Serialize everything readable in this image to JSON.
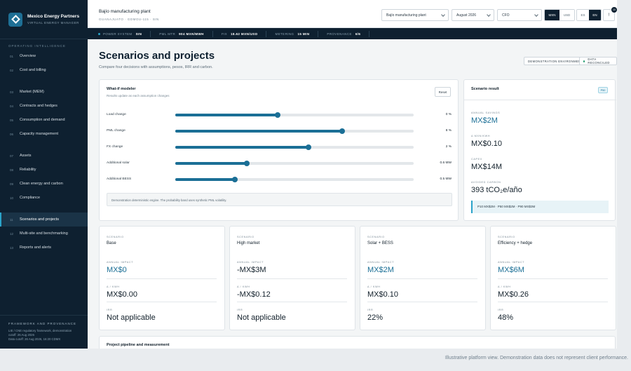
{
  "brand": {
    "name": "Mexico Energy Partners",
    "subtitle": "VIRTUAL ENERGY MANAGER"
  },
  "sidebar": {
    "sections": [
      {
        "title": "OPERATING INTELLIGENCE",
        "items": [
          {
            "num": "01",
            "label": "Overview"
          },
          {
            "num": "02",
            "label": "Cost and billing"
          }
        ]
      },
      {
        "title": "",
        "items": [
          {
            "num": "03",
            "label": "Market (MEM)"
          },
          {
            "num": "04",
            "label": "Contracts and hedges"
          },
          {
            "num": "05",
            "label": "Consumption and demand"
          },
          {
            "num": "06",
            "label": "Capacity management"
          }
        ]
      },
      {
        "title": "",
        "items": [
          {
            "num": "07",
            "label": "Assets"
          },
          {
            "num": "08",
            "label": "Reliability"
          },
          {
            "num": "09",
            "label": "Clean energy and carbon"
          },
          {
            "num": "10",
            "label": "Compliance"
          }
        ]
      },
      {
        "title": "",
        "items": [
          {
            "num": "11",
            "label": "Scenarios and projects",
            "active": true
          },
          {
            "num": "12",
            "label": "Multi-site and benchmarking"
          },
          {
            "num": "13",
            "label": "Reports and alerts"
          }
        ]
      }
    ],
    "footer": {
      "title": "FRAMEWORK AND PROVENANCE",
      "lines": [
        "LIE / CNE regulatory framework, demonstration",
        "cutoff: 26 Aug 2026",
        "Data cutoff: 26 Aug 2026, 16:20 CDMX"
      ]
    }
  },
  "topbar": {
    "site_name": "Bajío manufacturing plant",
    "site_location": "GUANAJUATO · GDMOU-115 · SIN",
    "site_select": "Bajío manufacturing plant",
    "period_select": "August 2026",
    "role_select": "CFO",
    "currency": [
      "MXN",
      "USD"
    ],
    "language": [
      "ES",
      "EN"
    ],
    "notifications_icon": "!",
    "notifications_count": "10"
  },
  "statusbar": [
    {
      "label": "POWER SYSTEM",
      "value": "SIN",
      "dot": true
    },
    {
      "label": "PML MTR",
      "value": "904 MXN/MWH"
    },
    {
      "label": "FIX",
      "value": "18.62 MXN/USD"
    },
    {
      "label": "METERING",
      "value": "15 MIN"
    },
    {
      "label": "PROVENANCE",
      "value": "6/6"
    }
  ],
  "page": {
    "title": "Scenarios and projects",
    "subtitle": "Compare four decisions with assumptions, pesos, IRR and carbon.",
    "env_pill": "DEMONSTRATION ENVIRONMENT",
    "reconciled_pill": "DATA RECONCILED"
  },
  "modeler": {
    "title": "What-if modeler",
    "subtitle": "Results update as each assumption changes",
    "reset": "Reset",
    "sliders": [
      {
        "label": "Load change",
        "value": "0 %",
        "level": 0.43
      },
      {
        "label": "PML change",
        "value": "8 %",
        "level": 0.7
      },
      {
        "label": "FX change",
        "value": "2 %",
        "level": 0.56
      },
      {
        "label": "Additional solar",
        "value": "0.6 MW",
        "level": 0.3
      },
      {
        "label": "Additional BESS",
        "value": "0.5 MW",
        "level": 0.25
      }
    ],
    "note": "Demonstration deterministic engine. The probability band uses synthetic PML volatility."
  },
  "result": {
    "title": "Scenario result",
    "badge": "P50",
    "metrics": [
      {
        "label": "ANNUAL SAVINGS",
        "value": "MX$2M",
        "accent": true
      },
      {
        "label": "Δ MXN/KWH",
        "value": "MX$0.10",
        "accent": false
      },
      {
        "label": "CAPEX",
        "value": "MX$14M",
        "accent": false
      },
      {
        "label": "AVOIDED CARBON",
        "value": "393 tCO₂e/año",
        "accent": false
      }
    ],
    "band": "P10 MX$2M · P50 MX$2M · P90 MX$3M"
  },
  "scenarios": [
    {
      "label": "SCENARIO",
      "name": "Base",
      "impact_label": "ANNUAL IMPACT",
      "impact": "MX$0",
      "impact_accent": true,
      "kwh_label": "Δ / KWH",
      "kwh": "MX$0.00",
      "irr_label": "IRR",
      "irr": "Not applicable"
    },
    {
      "label": "SCENARIO",
      "name": "High market",
      "impact_label": "ANNUAL IMPACT",
      "impact": "-MX$3M",
      "impact_accent": false,
      "kwh_label": "Δ / KWH",
      "kwh": "-MX$0.12",
      "irr_label": "IRR",
      "irr": "Not applicable"
    },
    {
      "label": "SCENARIO",
      "name": "Solar + BESS",
      "impact_label": "ANNUAL IMPACT",
      "impact": "MX$2M",
      "impact_accent": true,
      "kwh_label": "Δ / KWH",
      "kwh": "MX$0.10",
      "irr_label": "IRR",
      "irr": "22%"
    },
    {
      "label": "SCENARIO",
      "name": "Efficiency + hedge",
      "impact_label": "ANNUAL IMPACT",
      "impact": "MX$6M",
      "impact_accent": true,
      "kwh_label": "Δ / KWH",
      "kwh": "MX$0.26",
      "irr_label": "IRR",
      "irr": "48%"
    }
  ],
  "pipeline": {
    "title": "Project pipeline and measurement"
  },
  "caption": "Illustrative platform view. Demonstration data does not represent client performance.",
  "colors": {
    "navy": "#0e2030",
    "accent": "#1b6f96",
    "green": "#1f9b6e"
  }
}
